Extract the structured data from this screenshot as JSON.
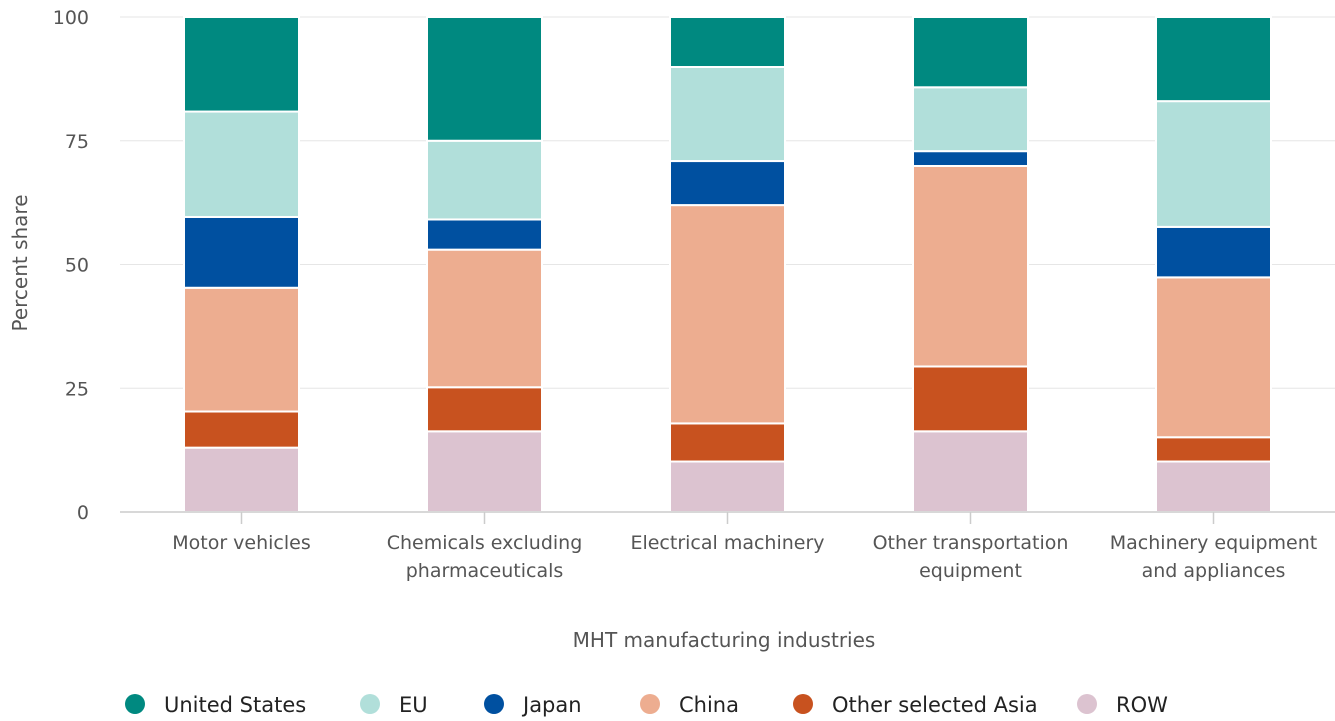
{
  "chart_data": {
    "type": "bar",
    "stacked": true,
    "title": "",
    "xlabel": "MHT manufacturing industries",
    "ylabel": "Percent share",
    "ylim": [
      0,
      100
    ],
    "yticks": [
      0,
      25,
      50,
      75,
      100
    ],
    "grid": true,
    "legend_position": "bottom",
    "categories": [
      [
        "Motor vehicles"
      ],
      [
        "Chemicals excluding",
        "pharmaceuticals"
      ],
      [
        "Electrical machinery"
      ],
      [
        "Other transportation",
        "equipment"
      ],
      [
        "Machinery equipment",
        "and appliances"
      ]
    ],
    "series": [
      {
        "name": "ROW",
        "color": "#dcc3d0",
        "values": [
          13,
          16.3,
          10.2,
          16.3,
          10.2
        ]
      },
      {
        "name": "Other selected Asia",
        "color": "#c8521f",
        "values": [
          7.3,
          8.9,
          7.7,
          13.1,
          4.9
        ]
      },
      {
        "name": "China",
        "color": "#edad90",
        "values": [
          25,
          27.8,
          44.1,
          40.5,
          32.3
        ]
      },
      {
        "name": "Japan",
        "color": "#0050a0",
        "values": [
          14.3,
          6.1,
          8.9,
          3.0,
          10.2
        ]
      },
      {
        "name": "EU",
        "color": "#b1dfda",
        "values": [
          21.3,
          15.9,
          19.0,
          12.9,
          25.4
        ]
      },
      {
        "name": "United States",
        "color": "#008980",
        "values": [
          19.1,
          25.0,
          10.1,
          14.2,
          17.0
        ]
      }
    ],
    "legend_order": [
      "United States",
      "EU",
      "Japan",
      "China",
      "Other selected Asia",
      "ROW"
    ]
  }
}
